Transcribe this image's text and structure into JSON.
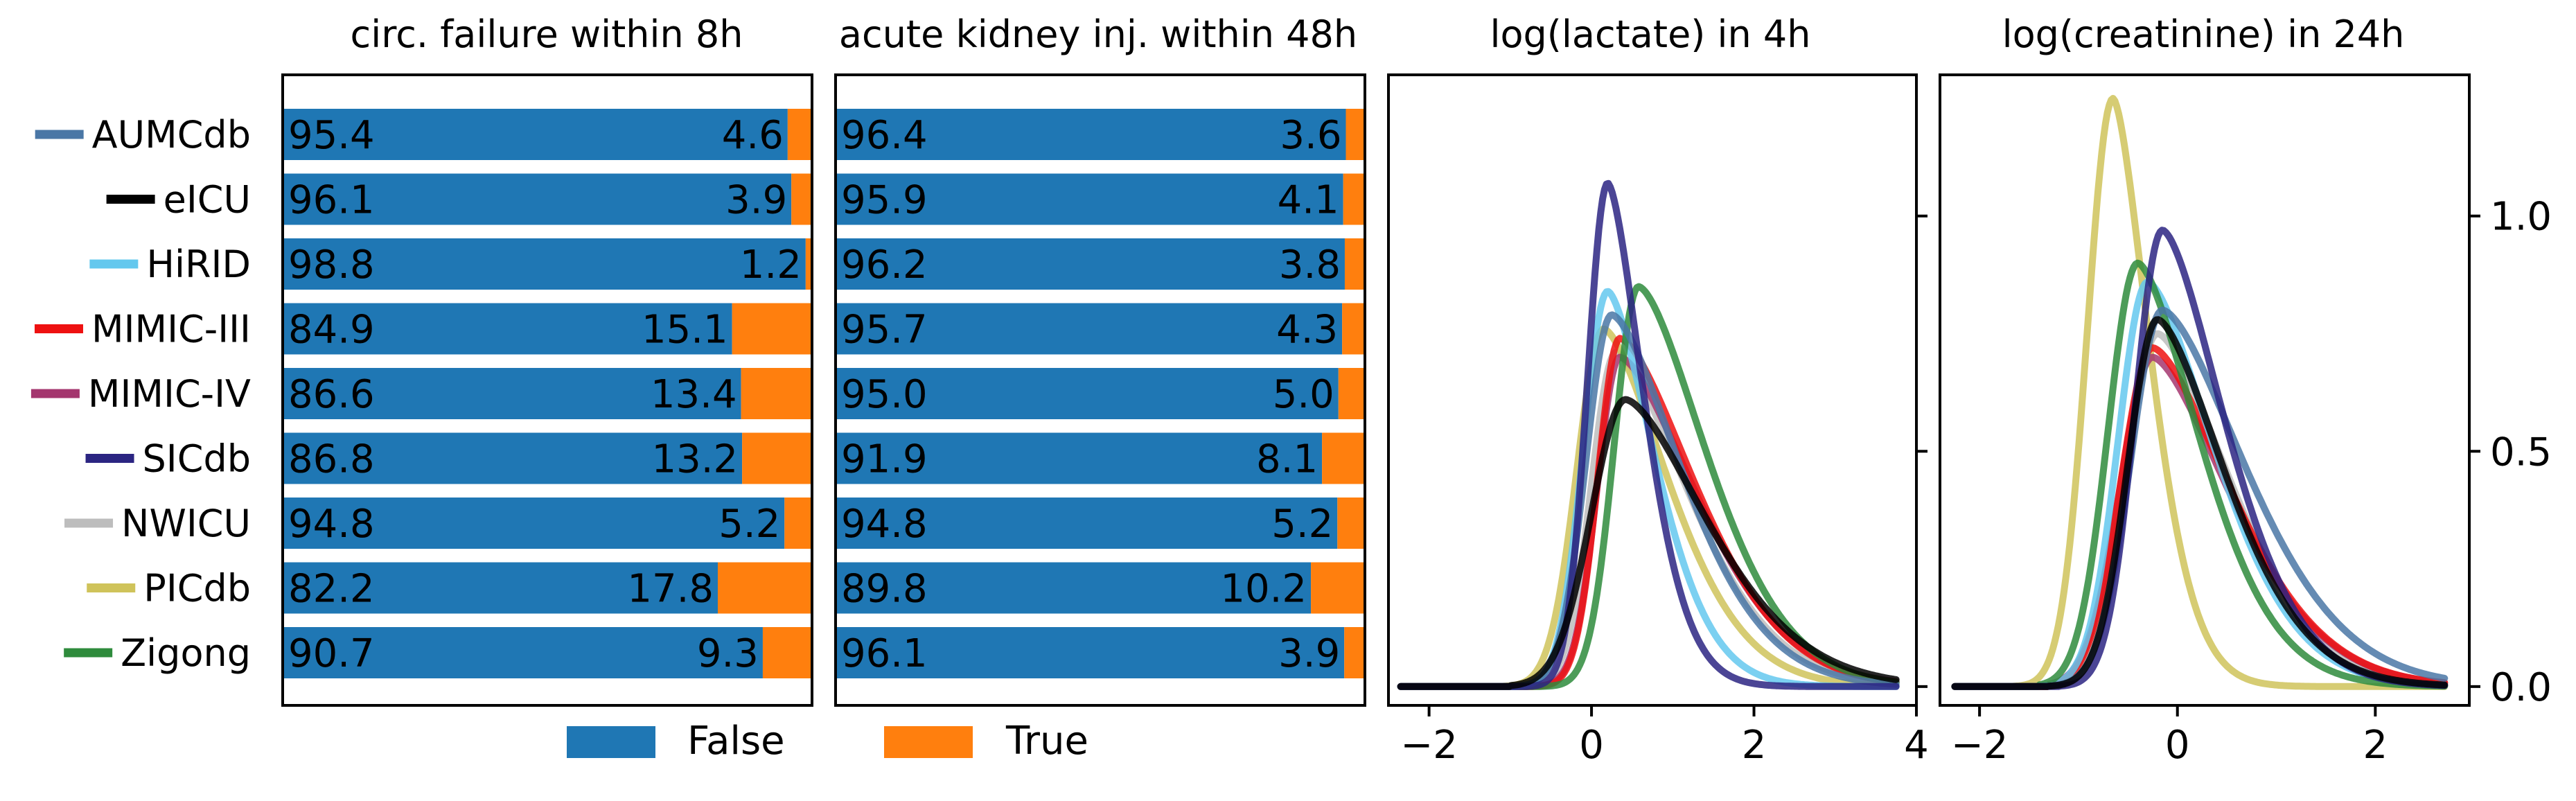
{
  "datasets": [
    {
      "name": "AUMCdb",
      "color": "#4a77a6"
    },
    {
      "name": "eICU",
      "color": "#000000"
    },
    {
      "name": "HiRID",
      "color": "#64c8ee"
    },
    {
      "name": "MIMIC-III",
      "color": "#ee1111"
    },
    {
      "name": "MIMIC-IV",
      "color": "#a4366e"
    },
    {
      "name": "SICdb",
      "color": "#2b2582"
    },
    {
      "name": "NWICU",
      "color": "#bdbdbd"
    },
    {
      "name": "PICdb",
      "color": "#cfc35a"
    },
    {
      "name": "Zigong",
      "color": "#2e8b3c"
    }
  ],
  "legend": {
    "false_label": "False",
    "true_label": "True",
    "false_color": "#1f77b4",
    "true_color": "#ff7f0e"
  },
  "chart_data": [
    {
      "type": "bar",
      "title": "circ. failure within 8h",
      "categories": [
        "AUMCdb",
        "eICU",
        "HiRID",
        "MIMIC-III",
        "MIMIC-IV",
        "SICdb",
        "NWICU",
        "PICdb",
        "Zigong"
      ],
      "series": [
        {
          "name": "False",
          "values": [
            95.4,
            96.1,
            98.8,
            84.9,
            86.6,
            86.8,
            94.8,
            82.2,
            90.7
          ]
        },
        {
          "name": "True",
          "values": [
            4.6,
            3.9,
            1.2,
            15.1,
            13.4,
            13.2,
            5.2,
            17.8,
            9.3
          ]
        }
      ],
      "value_labels_false": [
        "95.4",
        "96.1",
        "98.8",
        "84.9",
        "86.6",
        "86.8",
        "94.8",
        "82.2",
        "90.7"
      ],
      "value_labels_true": [
        "4.6",
        "3.9",
        "1.2",
        "15.1",
        "13.4",
        "13.2",
        "5.2",
        "17.8",
        "9.3"
      ],
      "xlim": [
        0,
        100
      ]
    },
    {
      "type": "bar",
      "title": "acute kidney inj. within 48h",
      "categories": [
        "AUMCdb",
        "eICU",
        "HiRID",
        "MIMIC-III",
        "MIMIC-IV",
        "SICdb",
        "NWICU",
        "PICdb",
        "Zigong"
      ],
      "series": [
        {
          "name": "False",
          "values": [
            96.4,
            95.9,
            96.2,
            95.7,
            95.0,
            91.9,
            94.8,
            89.8,
            96.1
          ]
        },
        {
          "name": "True",
          "values": [
            3.6,
            4.1,
            3.8,
            4.3,
            5.0,
            8.1,
            5.2,
            10.2,
            3.9
          ]
        }
      ],
      "value_labels_false": [
        "96.4",
        "95.9",
        "96.2",
        "95.7",
        "95.0",
        "91.9",
        "94.8",
        "89.8",
        "96.1"
      ],
      "value_labels_true": [
        "3.6",
        "4.1",
        "3.8",
        "4.3",
        "5.0",
        "8.1",
        "5.2",
        "10.2",
        "3.9"
      ],
      "xlim": [
        0,
        100
      ]
    },
    {
      "type": "line",
      "title": "log(lactate) in 4h",
      "xlim": [
        -2.5,
        4.0
      ],
      "ylim": [
        -0.04,
        1.3
      ],
      "xticks": [
        -2,
        0,
        2,
        4
      ],
      "xtick_labels": [
        "−2",
        "0",
        "2",
        "4"
      ],
      "yticks": [
        0,
        0.5,
        1.0
      ],
      "series": [
        {
          "name": "AUMCdb",
          "peak_x": 0.25,
          "peak_y": 0.79,
          "sigma_l": 0.32,
          "sigma_r": 0.82,
          "start_x": -0.9
        },
        {
          "name": "eICU",
          "peak_x": 0.42,
          "peak_y": 0.61,
          "sigma_l": 0.42,
          "sigma_r": 0.95,
          "start_x": -1.0
        },
        {
          "name": "HiRID",
          "peak_x": 0.2,
          "peak_y": 0.84,
          "sigma_l": 0.3,
          "sigma_r": 0.55,
          "start_x": -0.9
        },
        {
          "name": "MIMIC-III",
          "peak_x": 0.35,
          "peak_y": 0.74,
          "sigma_l": 0.27,
          "sigma_r": 0.88,
          "start_x": -0.8
        },
        {
          "name": "MIMIC-IV",
          "peak_x": 0.35,
          "peak_y": 0.7,
          "sigma_l": 0.28,
          "sigma_r": 0.9,
          "start_x": -0.8
        },
        {
          "name": "SICdb",
          "peak_x": 0.2,
          "peak_y": 1.07,
          "sigma_l": 0.25,
          "sigma_r": 0.42,
          "start_x": -0.8
        },
        {
          "name": "NWICU",
          "peak_x": 0.3,
          "peak_y": 0.71,
          "sigma_l": 0.3,
          "sigma_r": 0.85,
          "start_x": -0.9
        },
        {
          "name": "PICdb",
          "peak_x": 0.15,
          "peak_y": 0.76,
          "sigma_l": 0.33,
          "sigma_r": 0.75,
          "start_x": -1.1
        },
        {
          "name": "Zigong",
          "peak_x": 0.58,
          "peak_y": 0.85,
          "sigma_l": 0.3,
          "sigma_r": 0.8,
          "start_x": -0.7
        }
      ]
    },
    {
      "type": "line",
      "title": "log(creatinine) in 24h",
      "xlim": [
        -2.4,
        2.95
      ],
      "ylim": [
        -0.04,
        1.3
      ],
      "xticks": [
        -2,
        0,
        2
      ],
      "xtick_labels": [
        "−2",
        "0",
        "2"
      ],
      "yticks": [
        0,
        0.5,
        1.0
      ],
      "ytick_labels": [
        "0.0",
        "0.5",
        "1.0"
      ],
      "series": [
        {
          "name": "AUMCdb",
          "peak_x": -0.15,
          "peak_y": 0.8,
          "sigma_l": 0.32,
          "sigma_r": 0.8,
          "start_x": -1.4
        },
        {
          "name": "eICU",
          "peak_x": -0.2,
          "peak_y": 0.78,
          "sigma_l": 0.3,
          "sigma_r": 0.65,
          "start_x": -1.3
        },
        {
          "name": "HiRID",
          "peak_x": -0.3,
          "peak_y": 0.86,
          "sigma_l": 0.3,
          "sigma_r": 0.65,
          "start_x": -1.4
        },
        {
          "name": "MIMIC-III",
          "peak_x": -0.25,
          "peak_y": 0.72,
          "sigma_l": 0.32,
          "sigma_r": 0.75,
          "start_x": -1.3
        },
        {
          "name": "MIMIC-IV",
          "peak_x": -0.25,
          "peak_y": 0.7,
          "sigma_l": 0.33,
          "sigma_r": 0.75,
          "start_x": -1.3
        },
        {
          "name": "SICdb",
          "peak_x": -0.15,
          "peak_y": 0.97,
          "sigma_l": 0.28,
          "sigma_r": 0.6,
          "start_x": -1.2
        },
        {
          "name": "NWICU",
          "peak_x": -0.2,
          "peak_y": 0.75,
          "sigma_l": 0.32,
          "sigma_r": 0.7,
          "start_x": -1.3
        },
        {
          "name": "PICdb",
          "peak_x": -0.65,
          "peak_y": 1.25,
          "sigma_l": 0.26,
          "sigma_r": 0.35,
          "start_x": -2.0
        },
        {
          "name": "Zigong",
          "peak_x": -0.4,
          "peak_y": 0.9,
          "sigma_l": 0.3,
          "sigma_r": 0.6,
          "start_x": -1.4
        }
      ]
    }
  ]
}
